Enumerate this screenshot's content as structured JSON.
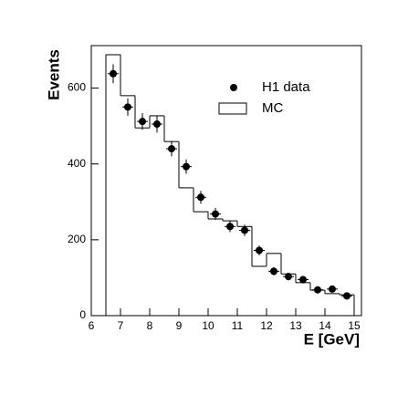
{
  "chart_data": {
    "type": "histogram",
    "xlabel": "E [GeV]",
    "ylabel": "Events",
    "xlim": [
      6,
      15.25
    ],
    "ylim": [
      0,
      712
    ],
    "xticks": [
      6,
      7,
      8,
      9,
      10,
      11,
      12,
      13,
      14,
      15
    ],
    "yticks": [
      0,
      200,
      400,
      600
    ],
    "bins": [
      6.5,
      7,
      7.5,
      8,
      8.5,
      9,
      9.5,
      10,
      10.5,
      11,
      11.5,
      12,
      12.5,
      13,
      13.5,
      14,
      14.5,
      15
    ],
    "legend": "upper right",
    "series": [
      {
        "name": "H1 data",
        "type": "scatter",
        "color": "#000000",
        "x": [
          6.75,
          7.25,
          7.75,
          8.25,
          8.75,
          9.25,
          9.75,
          10.25,
          10.75,
          11.25,
          11.75,
          12.25,
          12.75,
          13.25,
          13.75,
          14.25,
          14.75
        ],
        "values": [
          638,
          550,
          512,
          505,
          440,
          393,
          312,
          268,
          235,
          225,
          172,
          117,
          103,
          95,
          68,
          70,
          52
        ],
        "errors": [
          25,
          23,
          22,
          22,
          20,
          19,
          17,
          16,
          15,
          15,
          13,
          11,
          10,
          10,
          8,
          8,
          7
        ]
      },
      {
        "name": "MC",
        "type": "histogram",
        "color": "#000000",
        "values": [
          688,
          580,
          495,
          527,
          459,
          337,
          274,
          255,
          250,
          235,
          130,
          164,
          110,
          87,
          67,
          58,
          55
        ]
      }
    ]
  }
}
